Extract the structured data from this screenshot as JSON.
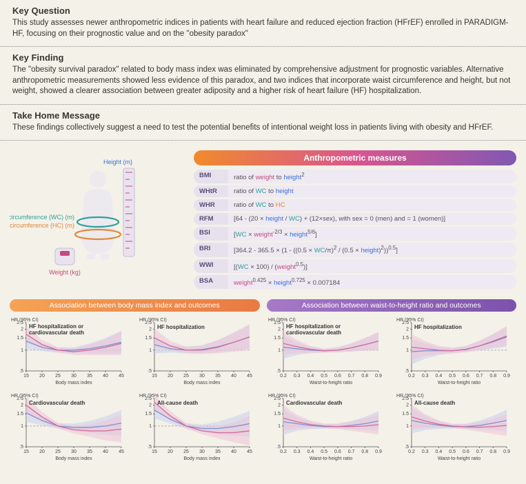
{
  "sections": {
    "keyQuestion": {
      "title": "Key Question",
      "body": "This study assesses newer anthropometric indices in patients with heart failure and reduced ejection fraction (HFrEF) enrolled in PARADIGM-HF, focusing on their prognostic value and on the \"obesity paradox\""
    },
    "keyFinding": {
      "title": "Key Finding",
      "body": "The \"obesity survival paradox\" related to body mass index was eliminated by comprehensive adjustment for prognostic variables. Alternative anthropometric measurements showed less evidence of this paradox, and two indices that incorporate waist circumference and height, but not weight, showed a clearer association between greater adiposity and a higher risk of heart failure (HF) hospitalization."
    },
    "takeHome": {
      "title": "Take Home Message",
      "body": "These findings collectively suggest a need to test the potential benefits of intentional weight loss in patients living with obesity and HFrEF."
    }
  },
  "illustration": {
    "heightLabel": "Height (m)",
    "wcLabel": "Waist circumference (WC) (m)",
    "hcLabel": "Hip circumference (HC) (m)",
    "weightLabel": "Weight (kg)"
  },
  "measuresTitle": "Anthropometric measures",
  "measures": [
    {
      "abbr": "BMI",
      "def": "ratio of <span class='w'>weight</span> to <span class='h'>height</span><sup>2</sup>"
    },
    {
      "abbr": "WHtR",
      "def": "ratio of <span class='wc'>WC</span> to <span class='h'>height</span>"
    },
    {
      "abbr": "WHR",
      "def": "ratio of <span class='wc'>WC</span> to <span class='hc'>HC</span>"
    },
    {
      "abbr": "RFM",
      "def": "[64 - (20 × <span class='h'>height</span> / <span class='wc'>WC</span>) + (12×sex), with sex = 0 (men) and = 1 (women)]"
    },
    {
      "abbr": "BSI",
      "def": "[<span class='wc'>WC</span> × <span class='w'>weight</span><sup>-2/3</sup> × <span class='h'>height</span><sup>5/6</sup>]"
    },
    {
      "abbr": "BRI",
      "def": "[364.2 - 365.5 × (1 - ((0.5 × <span class='wc'>WC</span>/π)<sup>2</sup> / (0.5 × <span class='h'>height</span>)<sup>2</sup>))<sup>0.5</sup>]"
    },
    {
      "abbr": "WWI",
      "def": "[(<span class='wc'>WC</span> × 100) / (<span class='w'>weight</span><sup>0.5</sup>)]"
    },
    {
      "abbr": "BSA",
      "def": "<span class='w'>weight</span><sup>0.425</sup> × <span class='h'>height</span><sup>0.725</sup> × 0.007184"
    }
  ],
  "chartGroups": {
    "bmi": {
      "title": "Association between body mass index and outcomes",
      "xlabel": "Body mass index",
      "xlim": [
        15,
        45
      ],
      "xticks": [
        15,
        20,
        25,
        30,
        35,
        40,
        45
      ],
      "charts": [
        "HF hospitalization or cardiovascular death",
        "HF hospitalization",
        "Cardiovascular death",
        "All-cause death"
      ]
    },
    "whtr": {
      "title": "Association between waist-to-height ratio and outcomes",
      "xlabel": "Waist-to-height ratio",
      "xlim": [
        0.2,
        0.9
      ],
      "xticks": [
        0.2,
        0.3,
        0.4,
        0.5,
        0.6,
        0.7,
        0.8,
        0.9
      ],
      "charts": [
        "HF hospitalization or cardiovascular death",
        "HF hospitalization",
        "Cardiovascular death",
        "All-cause death"
      ]
    }
  },
  "chartStyle": {
    "ylabel": "HR (95% CI)",
    "yticks": [
      0.5,
      1,
      1.5,
      2,
      2.5
    ],
    "colors": {
      "series1": "#d56a9a",
      "series1fill": "#eec2d6",
      "series2": "#7b8fd6",
      "series2fill": "#c6cfec",
      "refline": "#999",
      "axis": "#555"
    },
    "font": {
      "axis": 7,
      "title": 8
    }
  },
  "bmiCurves": {
    "x": [
      15,
      20,
      25,
      30,
      35,
      40,
      45
    ],
    "charts": [
      {
        "s1": [
          1.7,
          1.2,
          1.0,
          0.95,
          1.0,
          1.1,
          1.25
        ],
        "s1lo": [
          1.3,
          1.05,
          0.92,
          0.85,
          0.85,
          0.85,
          0.85
        ],
        "s1hi": [
          2.2,
          1.4,
          1.1,
          1.05,
          1.2,
          1.45,
          1.85
        ],
        "s2": [
          1.35,
          1.1,
          1.0,
          1.0,
          1.05,
          1.15,
          1.3
        ],
        "s2lo": [
          1.05,
          0.97,
          0.92,
          0.9,
          0.9,
          0.9,
          0.9
        ],
        "s2hi": [
          1.75,
          1.25,
          1.1,
          1.1,
          1.25,
          1.5,
          1.9
        ]
      },
      {
        "s1": [
          1.5,
          1.15,
          1.0,
          1.0,
          1.1,
          1.3,
          1.55
        ],
        "s1lo": [
          1.1,
          1.0,
          0.9,
          0.88,
          0.9,
          0.95,
          1.0
        ],
        "s1hi": [
          2.05,
          1.35,
          1.12,
          1.15,
          1.4,
          1.8,
          2.4
        ],
        "s2": [
          1.2,
          1.05,
          1.0,
          1.02,
          1.12,
          1.3,
          1.55
        ],
        "s2lo": [
          0.9,
          0.92,
          0.9,
          0.9,
          0.93,
          1.0,
          1.05
        ],
        "s2hi": [
          1.6,
          1.2,
          1.12,
          1.18,
          1.4,
          1.75,
          2.3
        ]
      },
      {
        "s1": [
          2.0,
          1.35,
          1.0,
          0.88,
          0.85,
          0.85,
          0.9
        ],
        "s1lo": [
          1.5,
          1.15,
          0.92,
          0.78,
          0.7,
          0.62,
          0.58
        ],
        "s1hi": [
          2.6,
          1.6,
          1.1,
          1.0,
          1.05,
          1.2,
          1.45
        ],
        "s2": [
          1.55,
          1.2,
          1.0,
          0.95,
          0.95,
          1.0,
          1.1
        ],
        "s2lo": [
          1.15,
          1.03,
          0.92,
          0.85,
          0.8,
          0.75,
          0.72
        ],
        "s2hi": [
          2.1,
          1.4,
          1.1,
          1.08,
          1.18,
          1.38,
          1.7
        ]
      },
      {
        "s1": [
          2.2,
          1.4,
          1.0,
          0.85,
          0.8,
          0.8,
          0.85
        ],
        "s1lo": [
          1.7,
          1.2,
          0.92,
          0.76,
          0.66,
          0.58,
          0.52
        ],
        "s1hi": [
          2.8,
          1.65,
          1.1,
          0.98,
          1.0,
          1.12,
          1.4
        ],
        "s2": [
          1.7,
          1.25,
          1.0,
          0.92,
          0.92,
          0.98,
          1.08
        ],
        "s2lo": [
          1.3,
          1.08,
          0.92,
          0.82,
          0.76,
          0.72,
          0.7
        ],
        "s2hi": [
          2.25,
          1.45,
          1.1,
          1.05,
          1.15,
          1.35,
          1.65
        ]
      }
    ]
  },
  "whtrCurves": {
    "x": [
      0.2,
      0.3,
      0.4,
      0.5,
      0.6,
      0.7,
      0.8,
      0.9
    ],
    "charts": [
      {
        "s1": [
          1.25,
          1.12,
          1.03,
          0.98,
          1.0,
          1.08,
          1.2,
          1.35
        ],
        "s1lo": [
          0.85,
          0.9,
          0.92,
          0.92,
          0.93,
          0.95,
          0.98,
          1.0
        ],
        "s1hi": [
          1.85,
          1.4,
          1.15,
          1.05,
          1.1,
          1.25,
          1.5,
          1.85
        ],
        "s2": [
          1.1,
          1.05,
          1.0,
          0.98,
          1.0,
          1.08,
          1.2,
          1.35
        ],
        "s2lo": [
          0.75,
          0.85,
          0.9,
          0.92,
          0.93,
          0.96,
          1.0,
          1.02
        ],
        "s2hi": [
          1.6,
          1.3,
          1.12,
          1.05,
          1.1,
          1.25,
          1.48,
          1.8
        ]
      },
      {
        "s1": [
          1.1,
          1.05,
          1.0,
          0.98,
          1.02,
          1.15,
          1.35,
          1.6
        ],
        "s1lo": [
          0.72,
          0.82,
          0.88,
          0.9,
          0.93,
          1.0,
          1.08,
          1.15
        ],
        "s1hi": [
          1.7,
          1.35,
          1.15,
          1.08,
          1.15,
          1.38,
          1.72,
          2.25
        ],
        "s2": [
          0.95,
          0.98,
          0.98,
          0.98,
          1.03,
          1.15,
          1.32,
          1.55
        ],
        "s2lo": [
          0.62,
          0.75,
          0.85,
          0.9,
          0.94,
          1.0,
          1.06,
          1.12
        ],
        "s2hi": [
          1.45,
          1.25,
          1.12,
          1.08,
          1.15,
          1.35,
          1.68,
          2.15
        ]
      },
      {
        "s1": [
          1.3,
          1.15,
          1.05,
          1.0,
          0.98,
          0.98,
          1.0,
          1.05
        ],
        "s1lo": [
          0.85,
          0.92,
          0.93,
          0.93,
          0.9,
          0.85,
          0.8,
          0.75
        ],
        "s1hi": [
          2.0,
          1.45,
          1.2,
          1.08,
          1.08,
          1.15,
          1.3,
          1.5
        ],
        "s2": [
          1.15,
          1.08,
          1.02,
          0.98,
          0.98,
          1.02,
          1.08,
          1.18
        ],
        "s2lo": [
          0.75,
          0.85,
          0.9,
          0.92,
          0.91,
          0.9,
          0.88,
          0.85
        ],
        "s2hi": [
          1.75,
          1.35,
          1.15,
          1.06,
          1.08,
          1.18,
          1.35,
          1.65
        ]
      },
      {
        "s1": [
          1.35,
          1.18,
          1.06,
          1.0,
          0.97,
          0.96,
          0.98,
          1.02
        ],
        "s1lo": [
          0.88,
          0.94,
          0.94,
          0.93,
          0.89,
          0.83,
          0.77,
          0.72
        ],
        "s1hi": [
          2.05,
          1.48,
          1.2,
          1.08,
          1.07,
          1.13,
          1.28,
          1.48
        ],
        "s2": [
          1.2,
          1.1,
          1.03,
          0.98,
          0.98,
          1.02,
          1.1,
          1.2
        ],
        "s2lo": [
          0.78,
          0.87,
          0.91,
          0.92,
          0.9,
          0.89,
          0.87,
          0.85
        ],
        "s2hi": [
          1.82,
          1.4,
          1.17,
          1.06,
          1.08,
          1.2,
          1.4,
          1.72
        ]
      }
    ]
  }
}
